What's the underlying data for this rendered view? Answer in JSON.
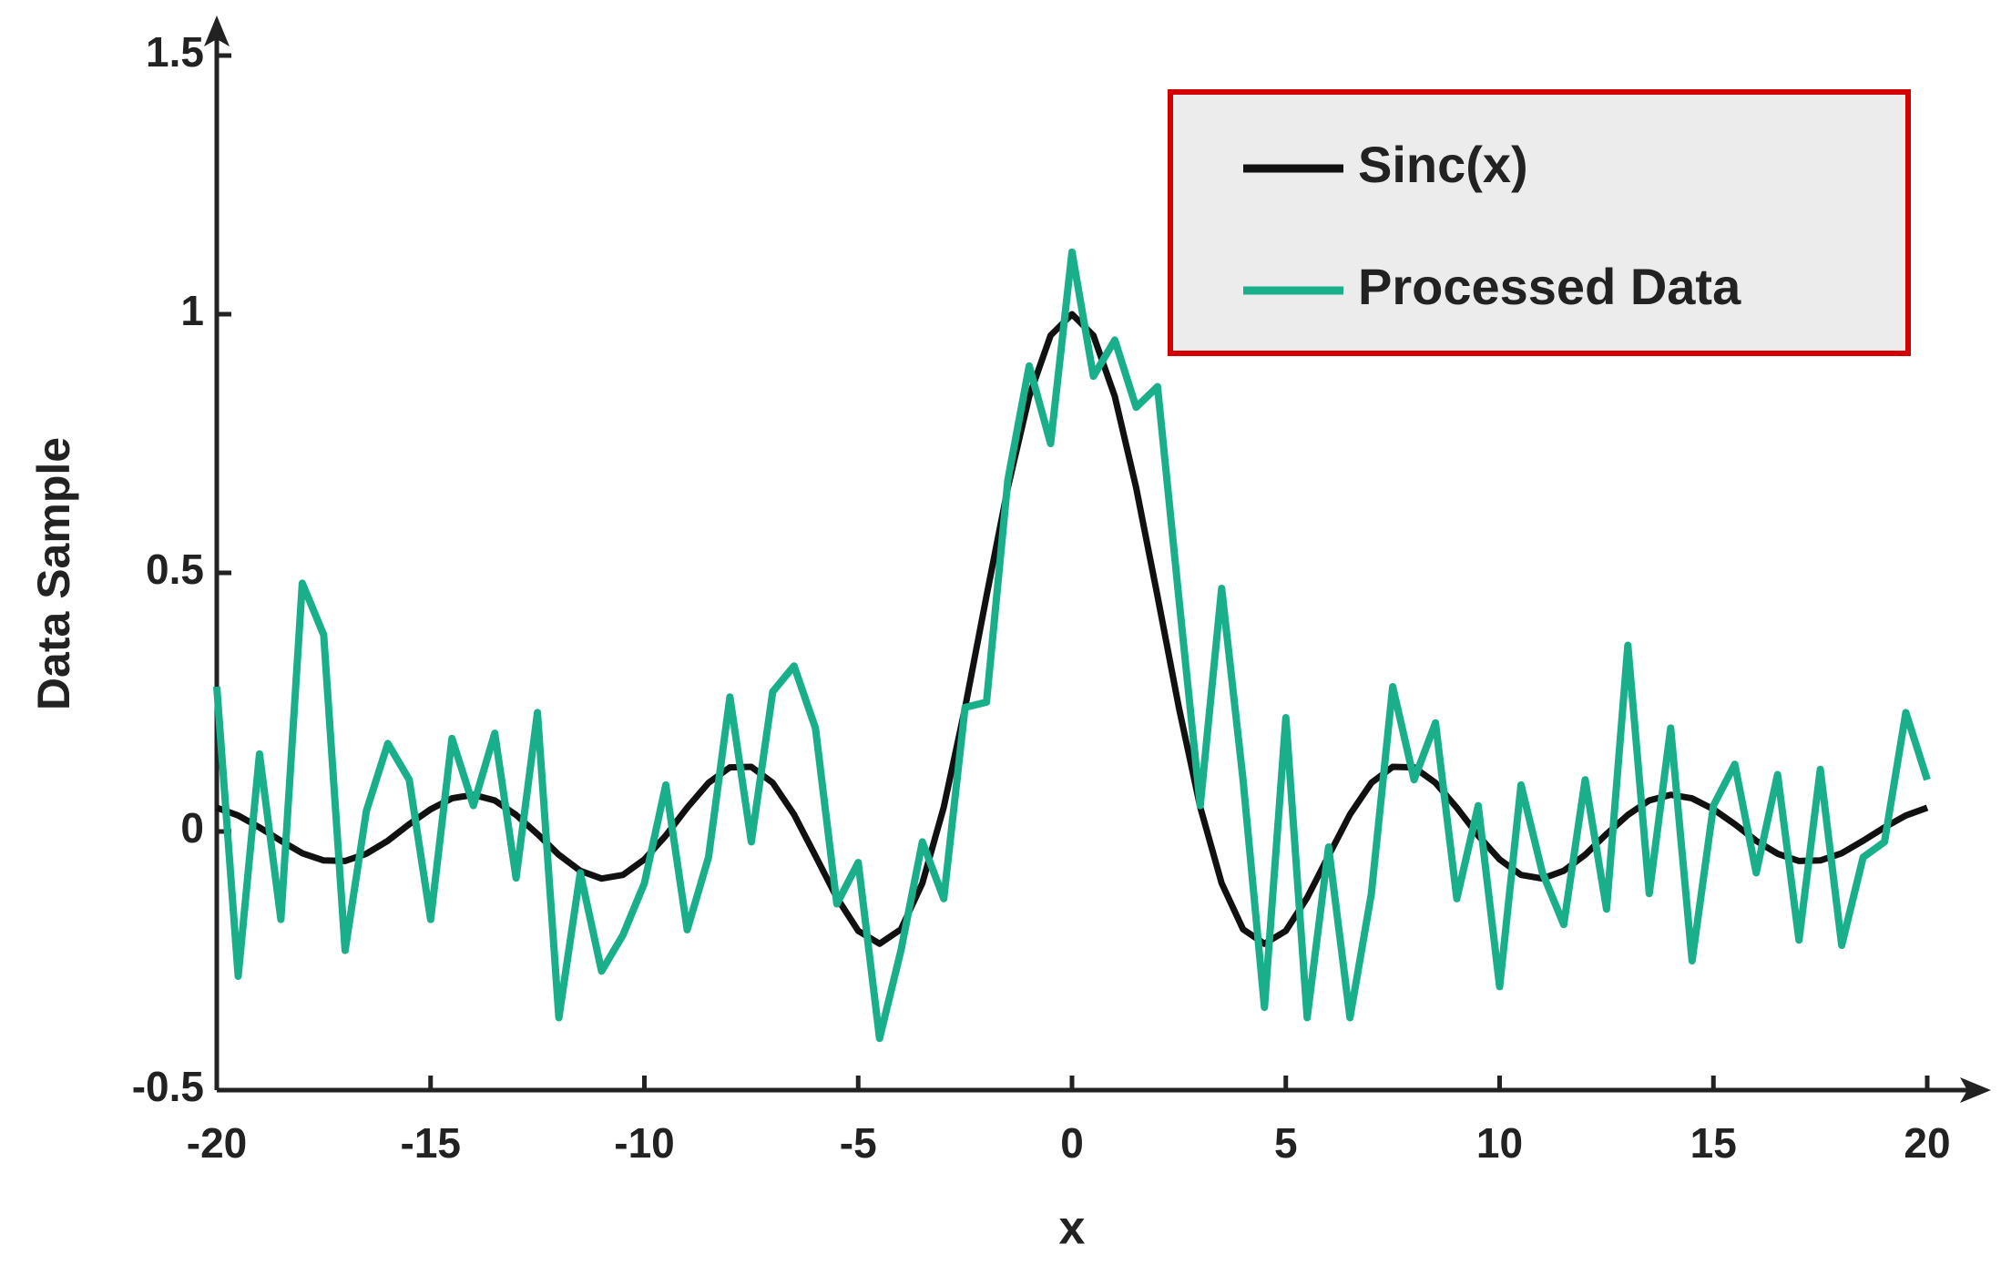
{
  "chart_data": {
    "type": "line",
    "x_label": "x",
    "y_label": "Data Sample",
    "x": [
      -20,
      -19.5,
      -19,
      -18.5,
      -18,
      -17.5,
      -17,
      -16.5,
      -16,
      -15.5,
      -15,
      -14.5,
      -14,
      -13.5,
      -13,
      -12.5,
      -12,
      -11.5,
      -11,
      -10.5,
      -10,
      -9.5,
      -9,
      -8.5,
      -8,
      -7.5,
      -7,
      -6.5,
      -6,
      -5.5,
      -5,
      -4.5,
      -4,
      -3.5,
      -3,
      -2.5,
      -2,
      -1.5,
      -1,
      -0.5,
      0,
      0.5,
      1,
      1.5,
      2,
      2.5,
      3,
      3.5,
      4,
      4.5,
      5,
      5.5,
      6,
      6.5,
      7,
      7.5,
      8,
      8.5,
      9,
      9.5,
      10,
      10.5,
      11,
      11.5,
      12,
      12.5,
      13,
      13.5,
      14,
      14.5,
      15,
      15.5,
      16,
      16.5,
      17,
      17.5,
      18,
      18.5,
      19,
      19.5,
      20
    ],
    "series": [
      {
        "name": "Sinc(x)",
        "color": "#111111",
        "values": [
          0.046,
          0.031,
          0.008,
          -0.018,
          -0.042,
          -0.056,
          -0.057,
          -0.043,
          -0.018,
          0.014,
          0.043,
          0.064,
          0.071,
          0.06,
          0.032,
          -0.005,
          -0.045,
          -0.076,
          -0.091,
          -0.084,
          -0.054,
          -0.008,
          0.046,
          0.094,
          0.124,
          0.125,
          0.094,
          0.033,
          -0.047,
          -0.128,
          -0.192,
          -0.217,
          -0.189,
          -0.1,
          0.047,
          0.239,
          0.455,
          0.665,
          0.841,
          0.959,
          1,
          0.959,
          0.841,
          0.665,
          0.455,
          0.239,
          0.047,
          -0.1,
          -0.189,
          -0.217,
          -0.192,
          -0.128,
          -0.047,
          0.033,
          0.094,
          0.125,
          0.124,
          0.094,
          0.046,
          -0.008,
          -0.054,
          -0.084,
          -0.091,
          -0.076,
          -0.045,
          -0.005,
          0.032,
          0.06,
          0.071,
          0.064,
          0.043,
          0.014,
          -0.018,
          -0.043,
          -0.057,
          -0.056,
          -0.042,
          -0.018,
          0.008,
          0.031,
          0.046
        ]
      },
      {
        "name": "Processed Data",
        "color": "#1aaf8b",
        "values": [
          0.28,
          -0.28,
          0.15,
          -0.17,
          0.48,
          0.38,
          -0.23,
          0.04,
          0.17,
          0.1,
          -0.17,
          0.18,
          0.05,
          0.19,
          -0.09,
          0.23,
          -0.36,
          -0.08,
          -0.27,
          -0.2,
          -0.1,
          0.09,
          -0.19,
          -0.05,
          0.26,
          -0.02,
          0.27,
          0.32,
          0.2,
          -0.14,
          -0.06,
          -0.4,
          -0.23,
          -0.02,
          -0.13,
          0.24,
          0.25,
          0.68,
          0.9,
          0.75,
          1.12,
          0.88,
          0.95,
          0.82,
          0.86,
          0.45,
          0.05,
          0.47,
          0.1,
          -0.34,
          0.22,
          -0.36,
          -0.03,
          -0.36,
          -0.12,
          0.28,
          0.1,
          0.21,
          -0.13,
          0.05,
          -0.3,
          0.09,
          -0.08,
          -0.18,
          0.1,
          -0.15,
          0.36,
          -0.12,
          0.2,
          -0.25,
          0.05,
          0.13,
          -0.08,
          0.11,
          -0.21,
          0.12,
          -0.22,
          -0.05,
          -0.02,
          0.23,
          0.1
        ]
      }
    ],
    "xlim": [
      -20,
      20
    ],
    "ylim": [
      -0.5,
      1.5
    ],
    "xticks": [
      -20,
      -15,
      -10,
      -5,
      0,
      5,
      10,
      15,
      20
    ],
    "yticks": [
      -0.5,
      0,
      0.5,
      1,
      1.5
    ],
    "grid": false,
    "legend": "upper right"
  }
}
